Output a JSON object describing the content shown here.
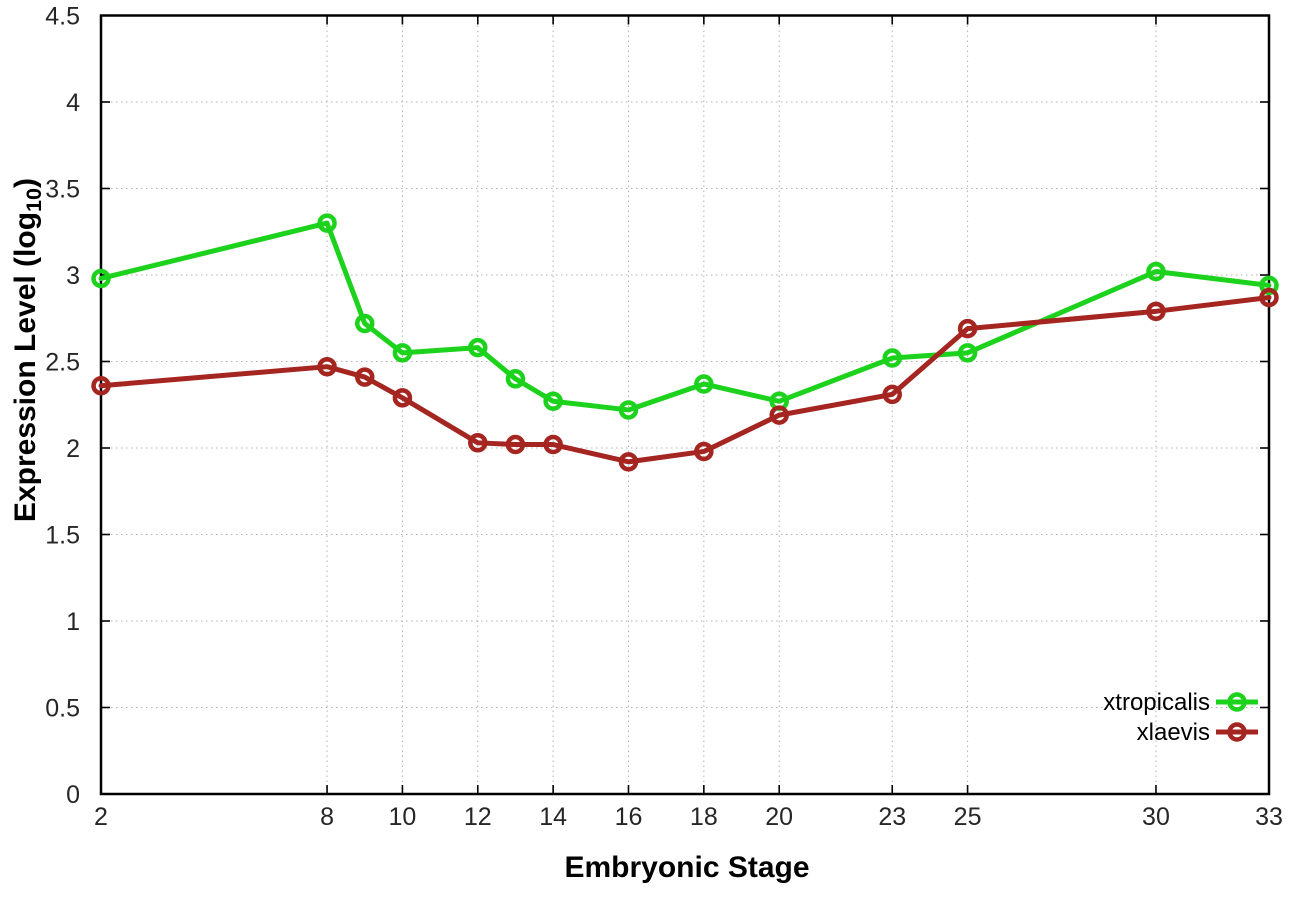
{
  "chart_data": {
    "type": "line",
    "title": "",
    "xlabel": "Embryonic Stage",
    "ylabel": {
      "pre": "Expression Level (log",
      "sub": "10",
      "post": ")"
    },
    "xlim": [
      2,
      33
    ],
    "ylim": [
      0,
      4.5
    ],
    "grid": true,
    "legend_position": "inside bottom-right",
    "x_ticks": [
      2,
      8,
      10,
      12,
      14,
      16,
      18,
      20,
      23,
      25,
      30,
      33
    ],
    "x_tick_labels": [
      "2",
      "8",
      "10",
      "12",
      "14",
      "16",
      "18",
      "20",
      "23",
      "25",
      "30",
      "33"
    ],
    "y_ticks": [
      0,
      0.5,
      1,
      1.5,
      2,
      2.5,
      3,
      3.5,
      4,
      4.5
    ],
    "y_tick_labels": [
      "0",
      "0.5",
      "1",
      "1.5",
      "2",
      "2.5",
      "3",
      "3.5",
      "4",
      "4.5"
    ],
    "x": [
      2,
      8,
      9,
      10,
      12,
      13,
      14,
      16,
      18,
      20,
      23,
      25,
      30,
      33
    ],
    "series": [
      {
        "name": "xtropicalis",
        "color": "#1dd21d",
        "marker": "open-circle",
        "values": [
          2.98,
          3.3,
          2.72,
          2.55,
          2.58,
          2.4,
          2.27,
          2.22,
          2.37,
          2.27,
          2.52,
          2.55,
          3.02,
          2.94
        ]
      },
      {
        "name": "xlaevis",
        "color": "#a52521",
        "marker": "open-circle",
        "values": [
          2.36,
          2.47,
          2.41,
          2.29,
          2.03,
          2.02,
          2.02,
          1.92,
          1.98,
          2.19,
          2.31,
          2.69,
          2.79,
          2.87
        ]
      }
    ]
  },
  "colors": {
    "background": "#ffffff",
    "grid": "#b3b3b3",
    "axis": "#000000",
    "text": "#000000"
  }
}
